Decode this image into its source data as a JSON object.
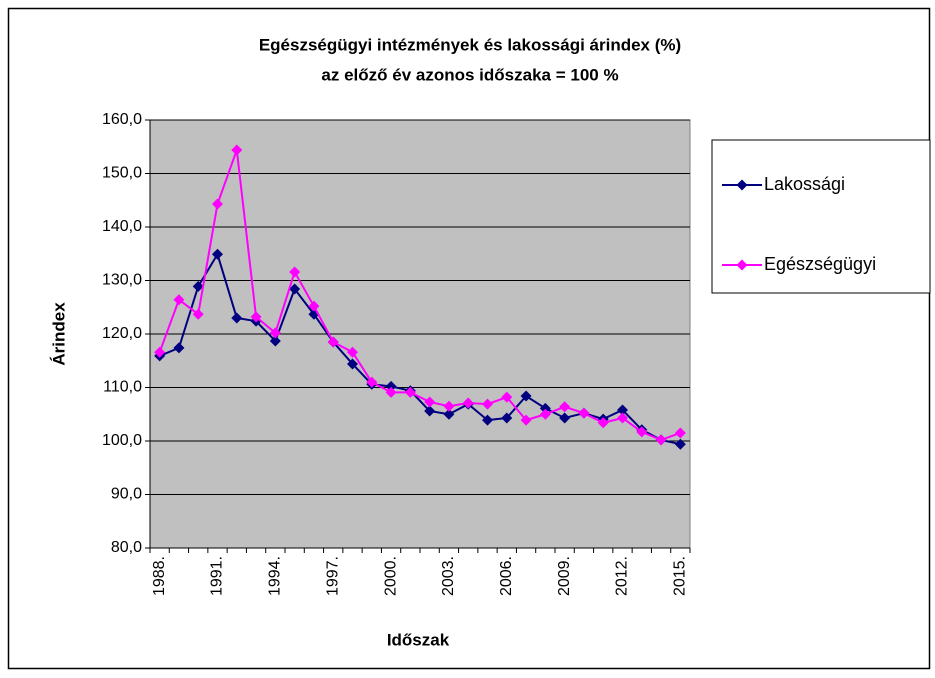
{
  "chart_data": {
    "type": "line",
    "title": "Egészségügyi intézmények és lakossági árindex (%)",
    "subtitle": "az előző év azonos időszaka = 100 %",
    "x_label": "Időszak",
    "y_label": "Árindex",
    "categories": [
      "1988.",
      null,
      null,
      "1991.",
      null,
      null,
      "1994.",
      null,
      null,
      "1997.",
      null,
      null,
      "2000.",
      null,
      null,
      "2003.",
      null,
      null,
      "2006.",
      null,
      null,
      "2009.",
      null,
      null,
      "2012.",
      null,
      null,
      "2015."
    ],
    "series": [
      {
        "name": "Lakossági",
        "color": "#000080",
        "values": [
          115.9,
          117.4,
          128.9,
          134.9,
          123.0,
          122.4,
          118.7,
          128.4,
          123.7,
          118.5,
          114.4,
          110.6,
          110.2,
          109.4,
          105.6,
          105.0,
          106.9,
          103.9,
          104.3,
          108.4,
          106.1,
          104.3,
          105.2,
          104.1,
          105.8,
          102.1,
          100.2,
          99.4
        ]
      },
      {
        "name": "Egészségügyi",
        "color": "#ff00ff",
        "values": [
          116.6,
          126.4,
          123.7,
          144.3,
          154.4,
          123.2,
          120.2,
          131.6,
          125.2,
          118.5,
          116.6,
          111.0,
          109.1,
          109.1,
          107.3,
          106.5,
          107.1,
          106.9,
          108.2,
          103.9,
          105.0,
          106.4,
          105.2,
          103.4,
          104.3,
          101.7,
          100.2,
          101.5
        ]
      }
    ],
    "ylim": [
      80,
      160
    ],
    "yticks": [
      {
        "value": 80,
        "label": "80,0"
      },
      {
        "value": 90,
        "label": "90,0"
      },
      {
        "value": 100,
        "label": "100,0"
      },
      {
        "value": 110,
        "label": "110,0"
      },
      {
        "value": 120,
        "label": "120,0"
      },
      {
        "value": 130,
        "label": "130,0"
      },
      {
        "value": 140,
        "label": "140,0"
      },
      {
        "value": 150,
        "label": "150,0"
      },
      {
        "value": 160,
        "label": "160,0"
      }
    ],
    "grid": true,
    "legend": "right"
  }
}
